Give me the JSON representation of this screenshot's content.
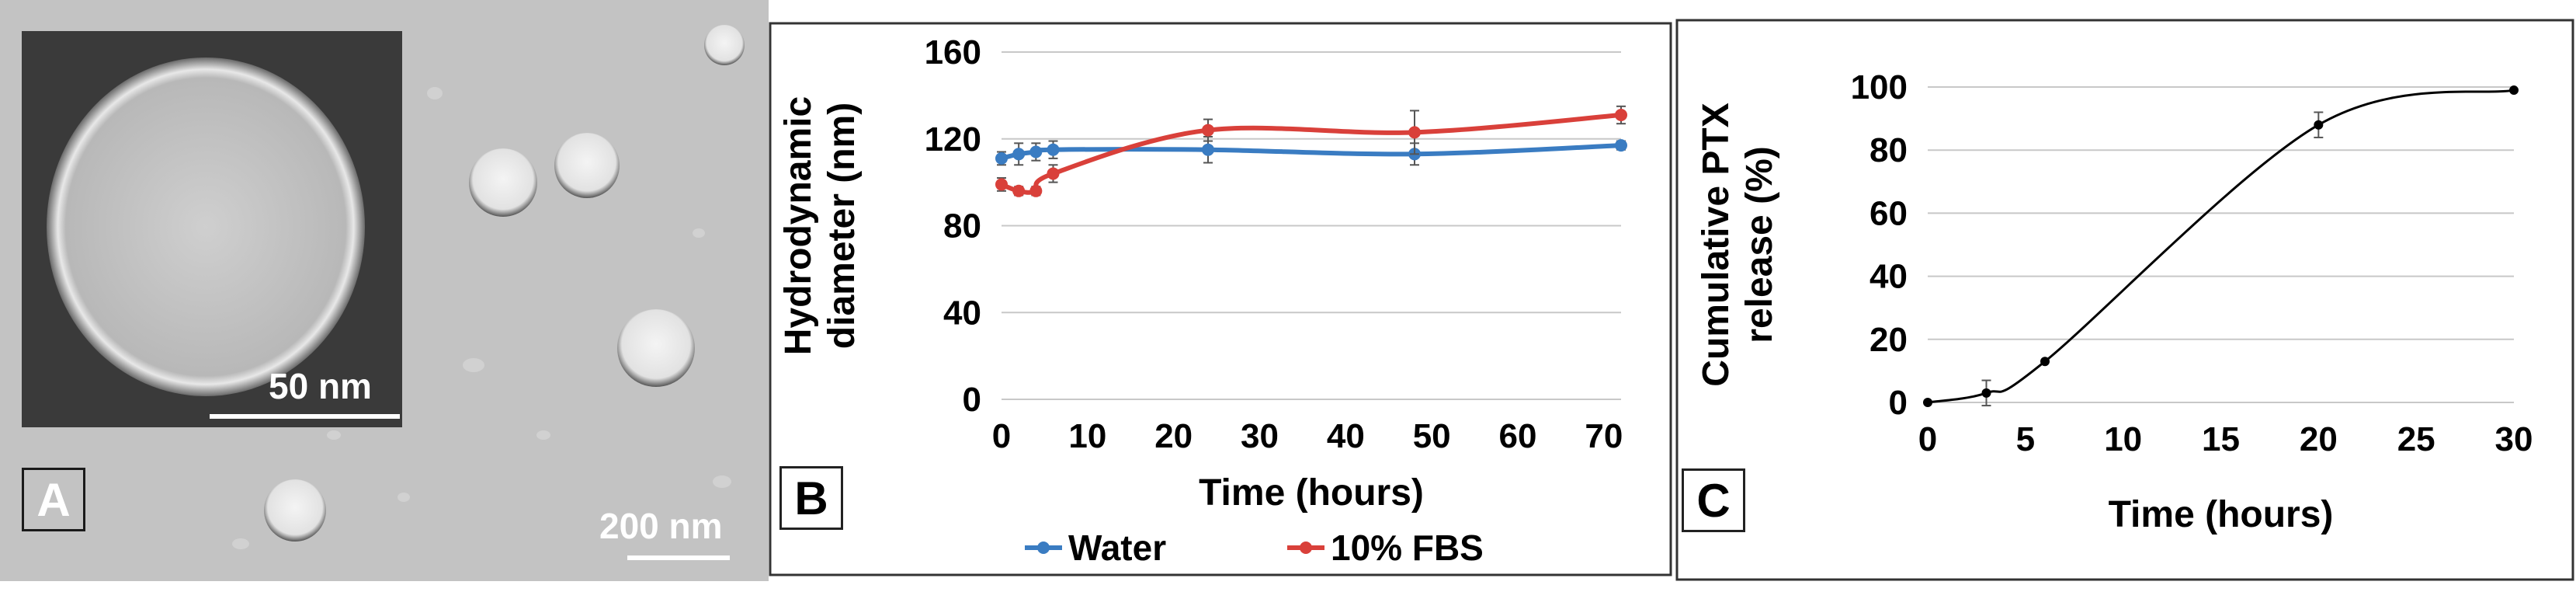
{
  "panel_a": {
    "letter": "A",
    "inset_scale_label": "50 nm",
    "main_scale_label": "200 nm"
  },
  "chart_data": [
    {
      "panel_letter": "B",
      "type": "line",
      "title": "",
      "xlabel": "Time (hours)",
      "ylabel_lines": [
        "Hydrodynamic",
        "diameter (nm)"
      ],
      "xlim": [
        0,
        72
      ],
      "ylim": [
        0,
        160
      ],
      "xticks": [
        0,
        10,
        20,
        30,
        40,
        50,
        60,
        70
      ],
      "yticks": [
        0,
        40,
        80,
        120,
        160
      ],
      "grid": "horizontal",
      "legend_position": "bottom",
      "series": [
        {
          "name": "Water",
          "color": "#3a7cc2",
          "x": [
            0,
            2,
            4,
            6,
            24,
            48,
            72
          ],
          "y": [
            111,
            113,
            114,
            115,
            115,
            113,
            117
          ],
          "err": [
            3,
            5,
            4,
            4,
            6,
            5,
            2
          ]
        },
        {
          "name": "10% FBS",
          "color": "#d9403a",
          "x": [
            0,
            2,
            4,
            6,
            24,
            48,
            72
          ],
          "y": [
            99,
            96,
            96,
            104,
            124,
            123,
            131
          ],
          "err": [
            3,
            2,
            2,
            4,
            5,
            10,
            4
          ]
        }
      ]
    },
    {
      "panel_letter": "C",
      "type": "line",
      "title": "",
      "xlabel": "Time (hours)",
      "ylabel_lines": [
        "Cumulative PTX",
        "release (%)"
      ],
      "xlim": [
        0,
        30
      ],
      "ylim": [
        0,
        100
      ],
      "xticks": [
        0,
        5,
        10,
        15,
        20,
        25,
        30
      ],
      "yticks": [
        0,
        20,
        40,
        60,
        80,
        100
      ],
      "grid": "horizontal",
      "series": [
        {
          "name": "Cumulative PTX release",
          "color": "#000000",
          "x": [
            0,
            3,
            6,
            20,
            30
          ],
          "y": [
            0,
            3,
            13,
            88,
            99
          ],
          "err": [
            0,
            4,
            0,
            4,
            0
          ]
        }
      ]
    }
  ]
}
